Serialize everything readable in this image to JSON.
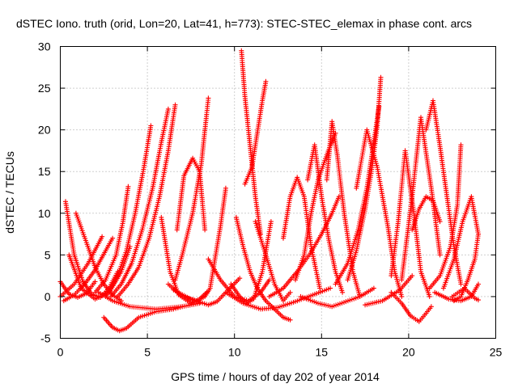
{
  "chart_data": {
    "type": "scatter",
    "title": "dSTEC Iono. truth (orid, Lon=20, Lat=41, h=773): STEC-STEC_elemax in phase cont. arcs",
    "xlabel": "GPS time / hours of day 202 of year 2014",
    "ylabel": "dSTEC  / TECUs",
    "xlim": [
      0,
      25
    ],
    "ylim": [
      -5,
      30
    ],
    "xticks": [
      "0",
      "5",
      "10",
      "15",
      "20",
      "25"
    ],
    "yticks": [
      "-5",
      "0",
      "5",
      "10",
      "15",
      "20",
      "25",
      "30"
    ],
    "grid": true,
    "marker": "plus",
    "color": "#ff0000",
    "series": [
      {
        "x": [
          0.0,
          0.5,
          1.0,
          1.5,
          2.0
        ],
        "values": [
          1.8,
          0.3,
          -0.1,
          0.4,
          1.8
        ]
      },
      {
        "x": [
          0.3,
          0.8,
          1.3,
          1.8,
          2.3,
          2.8,
          3.3
        ],
        "values": [
          11.4,
          5.0,
          1.8,
          0.3,
          -0.1,
          1.0,
          3.0
        ]
      },
      {
        "x": [
          0.5,
          1.2,
          2.0,
          2.8,
          3.5,
          4.0
        ],
        "values": [
          5.0,
          1.0,
          -0.3,
          0.5,
          3.0,
          6.0
        ]
      },
      {
        "x": [
          0.9,
          1.5,
          2.0,
          2.5,
          3.0,
          3.5
        ],
        "values": [
          10.0,
          6.5,
          3.5,
          1.5,
          0.2,
          -0.5
        ]
      },
      {
        "x": [
          0.0,
          0.8,
          1.6,
          2.4
        ],
        "values": [
          0.0,
          1.5,
          4.0,
          7.2
        ]
      },
      {
        "x": [
          0.2,
          0.8,
          1.4,
          2.0,
          2.6,
          3.0
        ],
        "values": [
          -0.5,
          0.2,
          1.5,
          3.2,
          5.5,
          7.0
        ]
      },
      {
        "x": [
          2.5,
          3.0,
          3.4,
          3.8,
          4.5,
          5.5,
          6.5,
          7.0
        ],
        "values": [
          -2.5,
          -3.7,
          -4.1,
          -3.8,
          -2.5,
          -1.8,
          -1.5,
          -1.2
        ]
      },
      {
        "x": [
          2.2,
          3.0,
          4.0,
          5.5,
          7.0,
          8.0
        ],
        "values": [
          0.5,
          -0.5,
          -1.2,
          -1.5,
          -1.2,
          -0.8
        ]
      },
      {
        "x": [
          2.0,
          2.6,
          3.2,
          3.6,
          3.9
        ],
        "values": [
          0.5,
          2.0,
          5.0,
          9.0,
          13.2
        ]
      },
      {
        "x": [
          2.6,
          3.2,
          3.8,
          4.3,
          4.8,
          5.2
        ],
        "values": [
          0.0,
          2.0,
          5.5,
          10.0,
          15.5,
          20.5
        ]
      },
      {
        "x": [
          2.9,
          3.5,
          4.1,
          4.7,
          5.3,
          5.8,
          6.2
        ],
        "values": [
          0.0,
          1.5,
          4.0,
          8.0,
          13.0,
          18.5,
          22.5
        ]
      },
      {
        "x": [
          3.3,
          3.9,
          4.5,
          5.1,
          5.7,
          6.2,
          6.6
        ],
        "values": [
          0.0,
          1.5,
          3.5,
          7.0,
          12.0,
          17.5,
          23.0
        ]
      },
      {
        "x": [
          5.8,
          6.3,
          6.8,
          7.5,
          8.0,
          8.4
        ],
        "values": [
          9.5,
          3.0,
          0.2,
          -0.8,
          -0.3,
          0.5
        ]
      },
      {
        "x": [
          6.2,
          7.0,
          7.8,
          8.3,
          8.6,
          9.2,
          9.5
        ],
        "values": [
          1.5,
          0.0,
          -0.5,
          0.0,
          1.0,
          8.5,
          13.0
        ]
      },
      {
        "x": [
          6.7,
          7.1,
          7.6,
          8.0,
          8.3
        ],
        "values": [
          8.0,
          14.5,
          16.6,
          15.0,
          8.0
        ]
      },
      {
        "x": [
          6.6,
          7.0,
          7.6,
          8.1,
          8.5
        ],
        "values": [
          2.0,
          5.0,
          10.0,
          16.0,
          23.8
        ]
      },
      {
        "x": [
          6.5,
          7.5,
          8.5,
          9.0,
          9.5,
          10.3
        ],
        "values": [
          0.8,
          -0.3,
          -1.0,
          -0.6,
          0.5,
          2.2
        ]
      },
      {
        "x": [
          8.5,
          9.2,
          10.0,
          10.8,
          11.5,
          12.0
        ],
        "values": [
          4.5,
          2.0,
          0.0,
          -0.5,
          0.5,
          2.0
        ]
      },
      {
        "x": [
          9.8,
          10.3,
          10.7,
          11.1,
          11.6,
          12.1
        ],
        "values": [
          1.5,
          0.0,
          -0.8,
          -0.3,
          3.0,
          9.0
        ]
      },
      {
        "x": [
          10.1,
          10.5,
          10.9,
          11.3,
          11.8,
          12.3,
          12.8,
          13.2
        ],
        "values": [
          9.5,
          6.0,
          3.0,
          1.0,
          -0.5,
          -1.5,
          -2.5,
          -2.8
        ]
      },
      {
        "x": [
          10.4,
          10.6,
          10.9,
          11.2,
          11.5
        ],
        "values": [
          29.5,
          24.0,
          18.0,
          12.0,
          7.5
        ]
      },
      {
        "x": [
          10.6,
          11.0,
          11.3,
          11.6,
          11.8
        ],
        "values": [
          13.5,
          15.5,
          19.5,
          23.5,
          25.8
        ]
      },
      {
        "x": [
          11.2,
          11.8,
          12.3,
          12.8,
          13.2
        ],
        "values": [
          9.0,
          5.0,
          1.5,
          -0.5,
          0.5
        ]
      },
      {
        "x": [
          9.5,
          10.5,
          11.5,
          12.5,
          13.5,
          14.5,
          15.5
        ],
        "values": [
          0.5,
          -0.8,
          -1.5,
          -1.3,
          -0.6,
          0.2,
          1.0
        ]
      },
      {
        "x": [
          12.8,
          13.2,
          13.6,
          14.0,
          14.4,
          14.9
        ],
        "values": [
          7.0,
          12.0,
          14.3,
          12.0,
          6.0,
          1.0
        ]
      },
      {
        "x": [
          12.0,
          12.8,
          13.6,
          14.3,
          15.0,
          15.6,
          16.0
        ],
        "values": [
          0.0,
          1.0,
          3.0,
          5.0,
          7.5,
          10.0,
          12.0
        ]
      },
      {
        "x": [
          13.5,
          14.0,
          14.4,
          14.8,
          15.3,
          15.8
        ],
        "values": [
          2.0,
          5.0,
          10.0,
          14.0,
          17.0,
          19.6
        ]
      },
      {
        "x": [
          14.2,
          14.6,
          15.0,
          15.4,
          15.8,
          16.2
        ],
        "values": [
          14.0,
          18.2,
          12.0,
          7.0,
          3.0,
          0.5
        ]
      },
      {
        "x": [
          15.3,
          15.6,
          15.9,
          16.3,
          16.8,
          17.2
        ],
        "values": [
          14.0,
          21.0,
          17.0,
          10.0,
          3.0,
          0.0
        ]
      },
      {
        "x": [
          13.8,
          14.8,
          15.6,
          16.4,
          17.2,
          18.0
        ],
        "values": [
          0.0,
          -0.8,
          -1.2,
          -0.6,
          0.0,
          1.0
        ]
      },
      {
        "x": [
          15.8,
          16.5,
          17.1,
          17.6,
          18.0,
          18.3
        ],
        "values": [
          1.5,
          4.0,
          8.0,
          13.0,
          18.5,
          22.8
        ]
      },
      {
        "x": [
          16.5,
          17.0,
          17.5,
          17.9,
          18.2,
          18.4
        ],
        "values": [
          2.0,
          5.5,
          10.5,
          15.5,
          20.5,
          26.3
        ]
      },
      {
        "x": [
          17.0,
          17.6,
          18.2,
          18.8,
          19.2,
          19.6
        ],
        "values": [
          13.0,
          20.0,
          15.5,
          8.5,
          3.0,
          0.0
        ]
      },
      {
        "x": [
          17.5,
          18.5,
          19.5,
          20.2
        ],
        "values": [
          -1.0,
          -0.5,
          0.8,
          2.5
        ]
      },
      {
        "x": [
          19.0,
          19.4,
          19.8,
          20.3,
          20.7,
          21.2
        ],
        "values": [
          2.5,
          9.0,
          17.5,
          10.0,
          3.0,
          0.0
        ]
      },
      {
        "x": [
          19.6,
          20.2,
          20.7,
          21.3,
          21.8
        ],
        "values": [
          2.0,
          12.0,
          21.5,
          13.0,
          5.0
        ]
      },
      {
        "x": [
          19.0,
          19.6,
          20.1,
          20.6,
          21.0,
          21.3
        ],
        "values": [
          0.5,
          -0.8,
          -2.3,
          -3.0,
          -2.0,
          -1.2
        ]
      },
      {
        "x": [
          20.2,
          20.6,
          21.0,
          21.4,
          21.8
        ],
        "values": [
          8.0,
          10.5,
          12.0,
          11.5,
          9.0
        ]
      },
      {
        "x": [
          21.0,
          21.4,
          21.8,
          22.2,
          22.6,
          23.0
        ],
        "values": [
          20.0,
          23.5,
          18.0,
          12.0,
          6.0,
          1.5
        ]
      },
      {
        "x": [
          21.2,
          21.8,
          22.4,
          22.8,
          23.0
        ],
        "values": [
          1.0,
          2.5,
          6.0,
          11.0,
          18.2
        ]
      },
      {
        "x": [
          22.0,
          22.6,
          23.1,
          23.6,
          24.0
        ],
        "values": [
          1.0,
          4.5,
          9.0,
          12.0,
          7.5
        ]
      },
      {
        "x": [
          22.6,
          23.0,
          23.4,
          23.8,
          24.0
        ],
        "values": [
          -0.5,
          0.0,
          2.0,
          4.5,
          7.5
        ]
      },
      {
        "x": [
          21.5,
          22.3,
          23.0,
          23.6,
          24.0
        ],
        "values": [
          0.5,
          -0.3,
          -0.5,
          0.0,
          1.5
        ]
      },
      {
        "x": [
          22.5,
          23.2,
          23.8,
          24.0
        ],
        "values": [
          0.0,
          1.0,
          -0.2,
          -0.4
        ]
      }
    ]
  }
}
